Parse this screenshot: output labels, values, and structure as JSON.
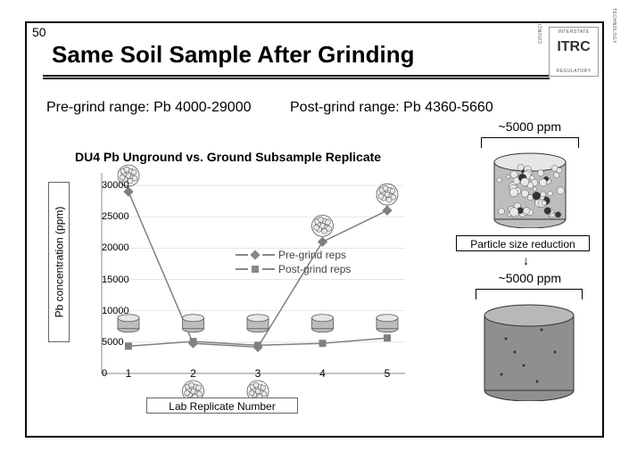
{
  "slide": {
    "number": "50",
    "title": "Same Soil Sample After Grinding",
    "pre_grind_range": "Pre-grind range: Pb 4000-29000",
    "post_grind_range": "Post-grind range: Pb 4360-5660"
  },
  "logo": {
    "text": "ITRC",
    "top": "INTERSTATE",
    "bottom": "REGULATORY",
    "left": "COUNCIL",
    "right": "TECHNOLOGY"
  },
  "chart": {
    "title": "DU4 Pb Unground vs. Ground Subsample Replicate",
    "ylabel": "Pb concentration (ppm)",
    "xlabel": "Lab Replicate Number",
    "ylim": [
      0,
      32000
    ],
    "yticks": [
      0,
      5000,
      10000,
      15000,
      20000,
      25000,
      30000
    ],
    "xcats": [
      "1",
      "2",
      "3",
      "4",
      "5"
    ],
    "series": {
      "pre": {
        "label": "Pre-grind reps",
        "values": [
          29000,
          4800,
          4200,
          21000,
          26000
        ],
        "color": "#808080",
        "marker": "diamond"
      },
      "post": {
        "label": "Post-grind reps",
        "values": [
          4360,
          5100,
          4500,
          4800,
          5660
        ],
        "color": "#808080",
        "marker": "square"
      }
    },
    "marker_cyl": {
      "rows": [
        1,
        2,
        3,
        4,
        5
      ],
      "y": 8000
    },
    "marker_ball": {
      "above": [
        1,
        4,
        5
      ],
      "below": [
        2,
        3
      ]
    },
    "line_color": "#808080",
    "grid_color": "#d8d8d8",
    "line_width": 1.5
  },
  "right": {
    "ppm_top": "~5000 ppm",
    "label": "Particle size reduction",
    "ppm_bot": "~5000 ppm"
  },
  "colors": {
    "text": "#000000",
    "border": "#000000",
    "cyl_body": "#bdbdbd",
    "cyl_top": "#e6e6e6",
    "cyl_bot_body": "#8f8f8f",
    "cyl_bot_top": "#b8b8b8",
    "particle_border": "#555555",
    "particle_fill": "#e8e8e8",
    "bg": "#ffffff"
  }
}
